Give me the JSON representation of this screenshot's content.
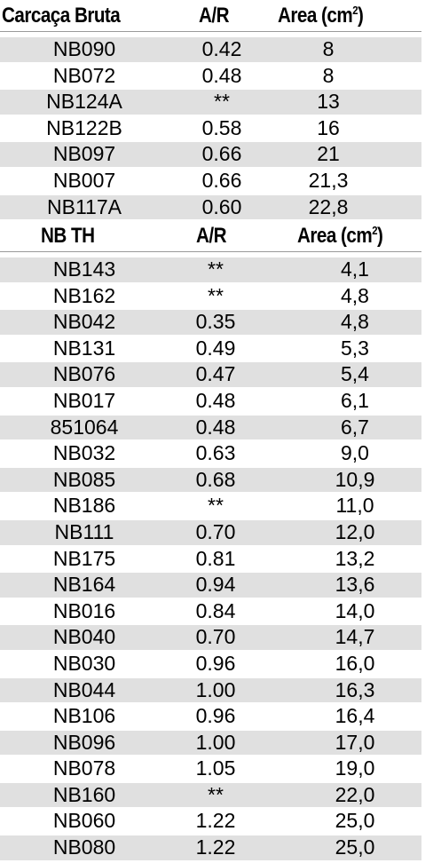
{
  "sections": [
    {
      "headers": {
        "code": "Carcaça Bruta",
        "ar": "A/R",
        "area": "Area (cm",
        "area_sup": "2",
        "area_close": ")"
      },
      "rows": [
        {
          "code": "NB090",
          "ar": "0.42",
          "area": "8"
        },
        {
          "code": "NB072",
          "ar": "0.48",
          "area": "8"
        },
        {
          "code": "NB124A",
          "ar": "**",
          "area": "13"
        },
        {
          "code": "NB122B",
          "ar": "0.58",
          "area": "16"
        },
        {
          "code": "NB097",
          "ar": "0.66",
          "area": "21"
        },
        {
          "code": "NB007",
          "ar": "0.66",
          "area": "21,3"
        },
        {
          "code": "NB117A",
          "ar": "0.60",
          "area": "22,8"
        }
      ]
    },
    {
      "headers": {
        "code": "NB TH",
        "ar": "A/R",
        "area": "Area (cm",
        "area_sup": "2",
        "area_close": ")"
      },
      "rows": [
        {
          "code": "NB143",
          "ar": "**",
          "area": "4,1"
        },
        {
          "code": "NB162",
          "ar": "**",
          "area": "4,8"
        },
        {
          "code": "NB042",
          "ar": "0.35",
          "area": "4,8"
        },
        {
          "code": "NB131",
          "ar": "0.49",
          "area": "5,3"
        },
        {
          "code": "NB076",
          "ar": "0.47",
          "area": "5,4"
        },
        {
          "code": "NB017",
          "ar": "0.48",
          "area": "6,1"
        },
        {
          "code": "851064",
          "ar": "0.48",
          "area": "6,7"
        },
        {
          "code": "NB032",
          "ar": "0.63",
          "area": "9,0"
        },
        {
          "code": "NB085",
          "ar": "0.68",
          "area": "10,9"
        },
        {
          "code": "NB186",
          "ar": "**",
          "area": "11,0"
        },
        {
          "code": "NB111",
          "ar": "0.70",
          "area": "12,0"
        },
        {
          "code": "NB175",
          "ar": "0.81",
          "area": "13,2"
        },
        {
          "code": "NB164",
          "ar": "0.94",
          "area": "13,6"
        },
        {
          "code": "NB016",
          "ar": "0.84",
          "area": "14,0"
        },
        {
          "code": "NB040",
          "ar": "0.70",
          "area": "14,7"
        },
        {
          "code": "NB030",
          "ar": "0.96",
          "area": "16,0"
        },
        {
          "code": "NB044",
          "ar": "1.00",
          "area": "16,3"
        },
        {
          "code": "NB106",
          "ar": "0.96",
          "area": "16,4"
        },
        {
          "code": "NB096",
          "ar": "1.00",
          "area": "17,0"
        },
        {
          "code": "NB078",
          "ar": "1.05",
          "area": "19,0"
        },
        {
          "code": "NB160",
          "ar": "**",
          "area": "22,0"
        },
        {
          "code": "NB060",
          "ar": "1.22",
          "area": "25,0"
        },
        {
          "code": "NB080",
          "ar": "1.22",
          "area": "25,0"
        }
      ]
    }
  ],
  "colors": {
    "row_stripe": "#e0e0e0",
    "rule": "#9a9a9a",
    "text": "#000000"
  }
}
